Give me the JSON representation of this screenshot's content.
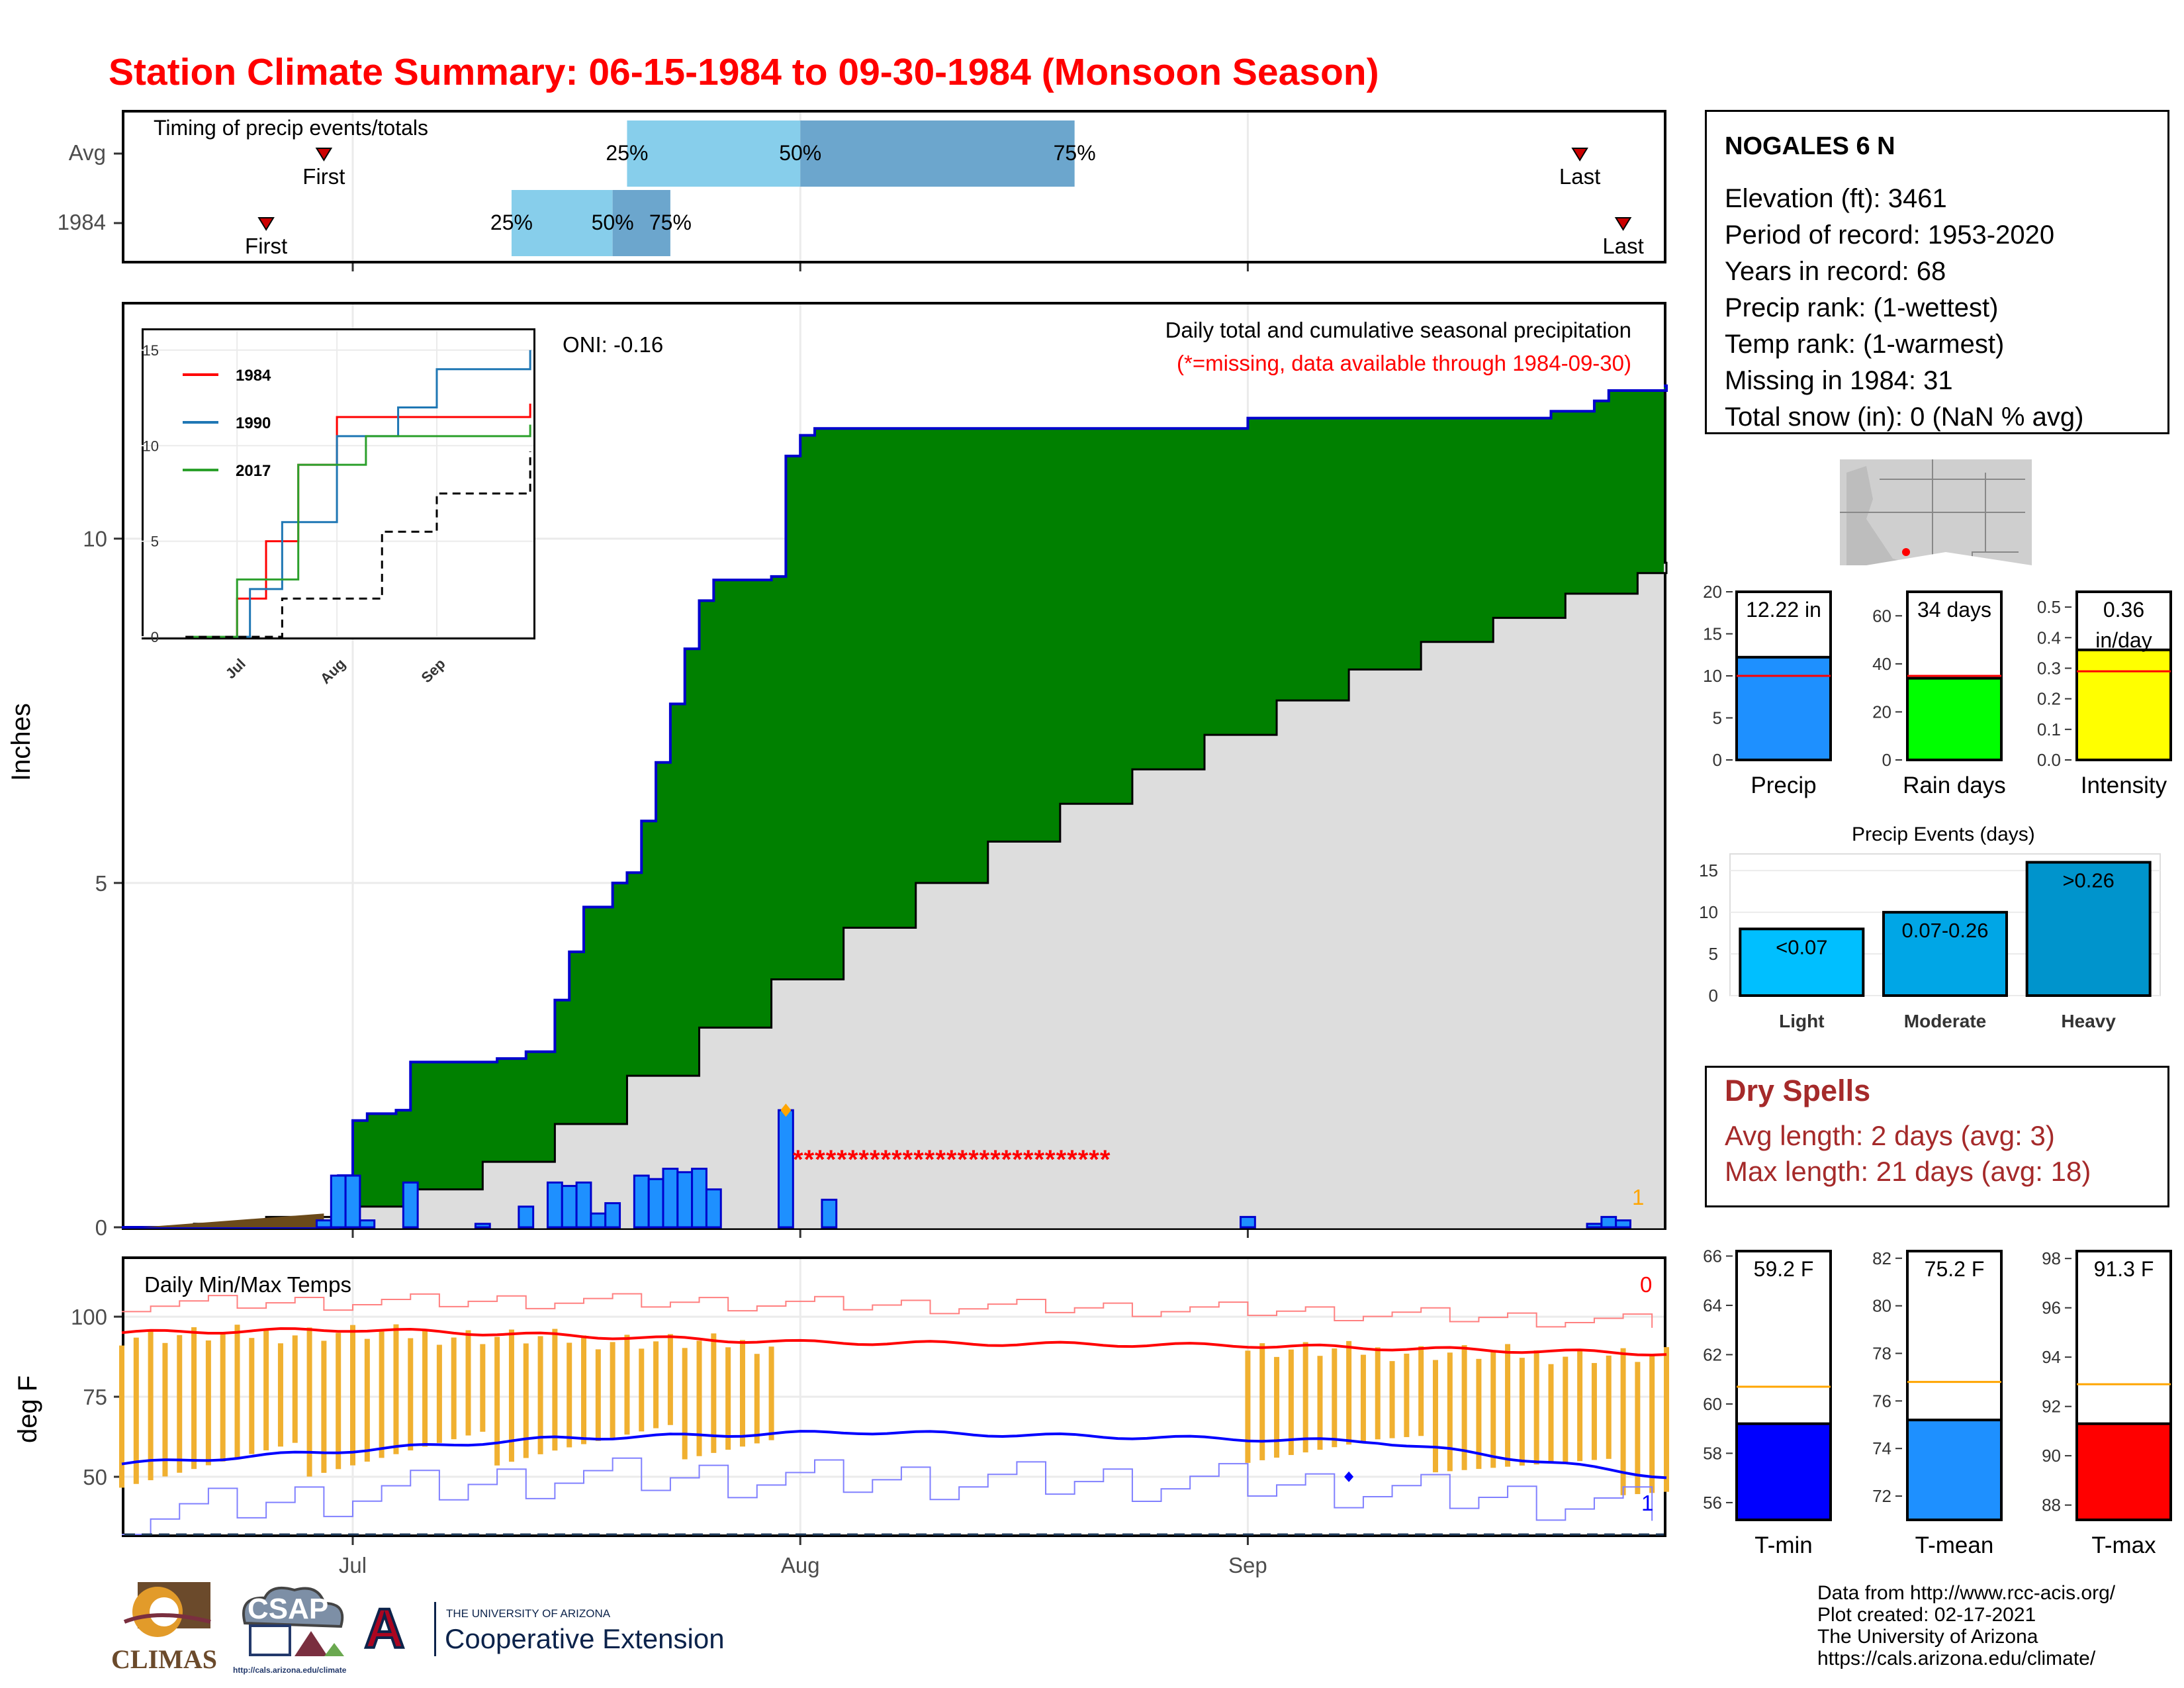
{
  "title": "Station Climate Summary: 06-15-1984 to 09-30-1984 (Monsoon Season)",
  "timing": {
    "label": "Timing of precip events/totals",
    "rows": [
      {
        "name": "Avg",
        "first": "First",
        "last": "Last",
        "q25": "25%",
        "q50": "50%",
        "q75": "75%",
        "first_day": "2024-06-29",
        "last_day": "2024-09-24",
        "q25_day": "2024-07-20",
        "q50_day": "2024-08-01",
        "q75_day": "2024-08-20"
      },
      {
        "name": "1984",
        "first": "First",
        "last": "Last",
        "q25": "25%",
        "q50": "50%",
        "q75": "75%",
        "first_day": "2024-06-25",
        "last_day": "2024-09-27",
        "q25_day": "2024-07-12",
        "q50_day": "2024-07-19",
        "q75_day": "2024-07-23"
      }
    ]
  },
  "main_chart": {
    "ylabel": "Inches",
    "oni": "ONI: -0.16",
    "caption": "Daily total and cumulative seasonal precipitation",
    "missing_note": "(*=missing, data available through 1984-09-30)",
    "missing_marks": "*****************************",
    "missing_count_label": "1",
    "x_ticks": [
      "Jul",
      "Aug",
      "Sep"
    ],
    "y_ticks": [
      "0",
      "5",
      "10"
    ]
  },
  "chart_data": [
    {
      "type": "area",
      "title": "Daily total and cumulative seasonal precipitation",
      "ylabel": "Inches",
      "ylim": [
        0,
        13.4
      ],
      "series": [
        {
          "name": "1984 cumulative",
          "color": "#008000",
          "points": [
            [
              "1984-06-15",
              0
            ],
            [
              "1984-06-29",
              0
            ],
            [
              "1984-06-30",
              0.75
            ],
            [
              "1984-07-01",
              1.55
            ],
            [
              "1984-07-02",
              1.65
            ],
            [
              "1984-07-04",
              1.7
            ],
            [
              "1984-07-05",
              2.4
            ],
            [
              "1984-07-11",
              2.45
            ],
            [
              "1984-07-13",
              2.55
            ],
            [
              "1984-07-15",
              3.3
            ],
            [
              "1984-07-16",
              4.0
            ],
            [
              "1984-07-17",
              4.65
            ],
            [
              "1984-07-19",
              5.0
            ],
            [
              "1984-07-20",
              5.15
            ],
            [
              "1984-07-21",
              5.9
            ],
            [
              "1984-07-22",
              6.75
            ],
            [
              "1984-07-23",
              7.6
            ],
            [
              "1984-07-24",
              8.4
            ],
            [
              "1984-07-25",
              9.1
            ],
            [
              "1984-07-26",
              9.4
            ],
            [
              "1984-07-30",
              9.45
            ],
            [
              "1984-07-31",
              11.2
            ],
            [
              "1984-08-01",
              11.5
            ],
            [
              "1984-08-02",
              11.6
            ],
            [
              "1984-09-01",
              11.75
            ],
            [
              "1984-09-21",
              11.75
            ],
            [
              "1984-09-22",
              11.85
            ],
            [
              "1984-09-25",
              12.0
            ],
            [
              "1984-09-26",
              12.15
            ],
            [
              "1984-09-30",
              12.22
            ]
          ]
        },
        {
          "name": "Avg cumulative",
          "color": "#dddddd",
          "points": [
            [
              "1984-06-15",
              0
            ],
            [
              "1984-06-20",
              0.05
            ],
            [
              "1984-06-25",
              0.15
            ],
            [
              "1984-06-30",
              0.3
            ],
            [
              "1984-07-05",
              0.55
            ],
            [
              "1984-07-10",
              0.95
            ],
            [
              "1984-07-15",
              1.5
            ],
            [
              "1984-07-20",
              2.2
            ],
            [
              "1984-07-25",
              2.9
            ],
            [
              "1984-07-30",
              3.6
            ],
            [
              "1984-08-04",
              4.35
            ],
            [
              "1984-08-09",
              5.0
            ],
            [
              "1984-08-14",
              5.6
            ],
            [
              "1984-08-19",
              6.15
            ],
            [
              "1984-08-24",
              6.65
            ],
            [
              "1984-08-29",
              7.15
            ],
            [
              "1984-09-03",
              7.65
            ],
            [
              "1984-09-08",
              8.1
            ],
            [
              "1984-09-13",
              8.5
            ],
            [
              "1984-09-18",
              8.85
            ],
            [
              "1984-09-23",
              9.2
            ],
            [
              "1984-09-28",
              9.5
            ],
            [
              "1984-09-30",
              9.65
            ]
          ]
        },
        {
          "name": "1984 daily",
          "color": "#1e90ff",
          "points": [
            [
              "1984-06-29",
              0.1
            ],
            [
              "1984-06-30",
              0.75
            ],
            [
              "1984-07-01",
              0.75
            ],
            [
              "1984-07-02",
              0.1
            ],
            [
              "1984-07-05",
              0.65
            ],
            [
              "1984-07-10",
              0.05
            ],
            [
              "1984-07-13",
              0.3
            ],
            [
              "1984-07-15",
              0.65
            ],
            [
              "1984-07-16",
              0.6
            ],
            [
              "1984-07-17",
              0.65
            ],
            [
              "1984-07-18",
              0.2
            ],
            [
              "1984-07-19",
              0.35
            ],
            [
              "1984-07-21",
              0.75
            ],
            [
              "1984-07-22",
              0.7
            ],
            [
              "1984-07-23",
              0.85
            ],
            [
              "1984-07-24",
              0.8
            ],
            [
              "1984-07-25",
              0.85
            ],
            [
              "1984-07-26",
              0.55
            ],
            [
              "1984-07-31",
              1.7
            ],
            [
              "1984-08-03",
              0.4
            ],
            [
              "1984-09-01",
              0.15
            ],
            [
              "1984-09-25",
              0.05
            ],
            [
              "1984-09-26",
              0.15
            ],
            [
              "1984-09-27",
              0.1
            ]
          ]
        }
      ]
    },
    {
      "type": "line",
      "title": "",
      "series": [
        {
          "name": "1984",
          "color": "#ff0000",
          "points": [
            [
              "1984-06-15",
              0
            ],
            [
              "1984-07-01",
              2
            ],
            [
              "1984-07-10",
              5
            ],
            [
              "1984-07-20",
              9
            ],
            [
              "1984-08-01",
              11.5
            ],
            [
              "1984-09-30",
              12.2
            ]
          ]
        },
        {
          "name": "1990",
          "color": "#1f77b4",
          "points": [
            [
              "1990-06-15",
              0
            ],
            [
              "1990-07-05",
              2.5
            ],
            [
              "1990-07-15",
              6
            ],
            [
              "1990-08-01",
              10.5
            ],
            [
              "1990-08-20",
              12
            ],
            [
              "1990-09-01",
              14
            ],
            [
              "1990-09-30",
              15
            ]
          ]
        },
        {
          "name": "2017",
          "color": "#2ca02c",
          "points": [
            [
              "2017-06-15",
              0
            ],
            [
              "2017-07-01",
              3
            ],
            [
              "2017-07-20",
              9
            ],
            [
              "2017-08-10",
              10.5
            ],
            [
              "2017-09-30",
              11.1
            ]
          ]
        },
        {
          "name": "Avg",
          "color": "#000000",
          "points": [
            [
              "2017-06-15",
              0
            ],
            [
              "2017-07-15",
              2
            ],
            [
              "2017-08-15",
              5.5
            ],
            [
              "2017-09-01",
              7.5
            ],
            [
              "2017-09-30",
              9.7
            ]
          ]
        }
      ],
      "y_ticks": [
        "0",
        "5",
        "10",
        "15"
      ],
      "x_ticks": [
        "Jul",
        "Aug",
        "Sep"
      ]
    },
    {
      "type": "bar",
      "categories": [
        "Precip"
      ],
      "values": [
        12.22
      ],
      "avg": 10.0,
      "ylim": [
        0,
        20
      ],
      "label": "12.22 in",
      "xlabel": "Precip",
      "color": "#1e90ff",
      "y_ticks": [
        "0",
        "5",
        "10",
        "15",
        "20"
      ]
    },
    {
      "type": "bar",
      "categories": [
        "Rain days"
      ],
      "values": [
        34
      ],
      "avg": 35,
      "ylim": [
        0,
        70
      ],
      "label": "34 days",
      "xlabel": "Rain days",
      "color": "#00ff00",
      "y_ticks": [
        "0",
        "20",
        "40",
        "60"
      ]
    },
    {
      "type": "bar",
      "categories": [
        "Intensity"
      ],
      "values": [
        0.36
      ],
      "avg": 0.29,
      "ylim": [
        0,
        0.55
      ],
      "label": "0.36",
      "label2": "in/day",
      "xlabel": "Intensity",
      "color": "#ffff00",
      "y_ticks": [
        "0.0",
        "0.1",
        "0.2",
        "0.3",
        "0.4",
        "0.5"
      ]
    },
    {
      "type": "bar",
      "title": "Precip Events (days)",
      "categories": [
        "Light",
        "Moderate",
        "Heavy"
      ],
      "values": [
        8,
        10,
        16
      ],
      "bar_labels": [
        "<0.07",
        "0.07-0.26",
        ">0.26"
      ],
      "colors": [
        "#00bfff",
        "#00a6e6",
        "#0094cc"
      ],
      "ylim": [
        0,
        17
      ],
      "y_ticks": [
        "0",
        "5",
        "10",
        "15"
      ]
    },
    {
      "type": "bar",
      "categories": [
        "T-min"
      ],
      "values": [
        59.2
      ],
      "avg": 60.7,
      "ylim": [
        55.3,
        66.2
      ],
      "label": "59.2 F",
      "xlabel": "T-min",
      "color": "#0000ff",
      "y_ticks": [
        "56",
        "58",
        "60",
        "62",
        "64",
        "66"
      ]
    },
    {
      "type": "bar",
      "categories": [
        "T-mean"
      ],
      "values": [
        75.2
      ],
      "avg": 76.8,
      "ylim": [
        71.0,
        82.3
      ],
      "label": "75.2 F",
      "xlabel": "T-mean",
      "color": "#1e90ff",
      "y_ticks": [
        "72",
        "74",
        "76",
        "78",
        "80",
        "82"
      ]
    },
    {
      "type": "bar",
      "categories": [
        "T-max"
      ],
      "values": [
        91.3
      ],
      "avg": 92.9,
      "ylim": [
        87.4,
        98.3
      ],
      "label": "91.3 F",
      "xlabel": "T-max",
      "color": "#ff0000",
      "y_ticks": [
        "88",
        "90",
        "92",
        "94",
        "96",
        "98"
      ]
    },
    {
      "type": "line",
      "title": "Daily Min/Max Temps",
      "ylabel": "deg F",
      "ylim": [
        32,
        118
      ],
      "y_ticks": [
        "50",
        "75",
        "100"
      ],
      "x_ticks": [
        "Jul",
        "Aug",
        "Sep"
      ],
      "series": [
        {
          "name": "Avg max",
          "color": "#ff0000",
          "points": [
            [
              "1984-06-15",
              95
            ],
            [
              "1984-07-01",
              96
            ],
            [
              "1984-08-01",
              92
            ],
            [
              "1984-09-01",
              91
            ],
            [
              "1984-09-30",
              88.5
            ]
          ]
        },
        {
          "name": "Avg min",
          "color": "#0000ff",
          "points": [
            [
              "1984-06-15",
              54
            ],
            [
              "1984-07-15",
              62
            ],
            [
              "1984-08-05",
              64
            ],
            [
              "1984-09-10",
              61
            ],
            [
              "1984-09-30",
              50
            ]
          ]
        },
        {
          "name": "Record max",
          "color": "#ff8080",
          "points": [
            [
              "1984-06-15",
              104
            ],
            [
              "1984-07-15",
              105
            ],
            [
              "1984-09-01",
              102
            ],
            [
              "1984-09-30",
              98
            ]
          ]
        },
        {
          "name": "Record min",
          "color": "#8080ff",
          "points": [
            [
              "1984-06-15",
              38
            ],
            [
              "1984-07-15",
              50
            ],
            [
              "1984-09-01",
              48
            ],
            [
              "1984-09-30",
              40
            ]
          ]
        }
      ],
      "freeze_line": 32,
      "max_label": "0",
      "min_label": "1"
    }
  ],
  "station": {
    "name": "NOGALES 6 N",
    "lines": [
      "Elevation (ft): 3461",
      "Period of record: 1953-2020",
      "Years in record: 68",
      "Precip rank:  (1-wettest)",
      "Temp rank:  (1-warmest)",
      "Missing in 1984: 31",
      "Total snow (in): 0 (NaN % avg)"
    ]
  },
  "dry_spells": {
    "title": "Dry Spells",
    "avg": "Avg length: 2 days (avg: 3)",
    "max": "Max length: 21 days (avg: 18)"
  },
  "footer": {
    "lines": [
      "Data from http://www.rcc-acis.org/",
      "Plot created: 02-17-2021",
      "The University of Arizona",
      "https://cals.arizona.edu/climate/"
    ]
  },
  "logos": {
    "climas": "CLIMAS",
    "csap": "CSAP",
    "csap_url": "http://cals.arizona.edu/climate",
    "ua_top": "THE UNIVERSITY OF ARIZONA",
    "ua_bottom": "Cooperative Extension",
    "ua_letter": "A"
  },
  "colors": {
    "title": "#ff0000",
    "green": "#008000",
    "grey": "#dddddd",
    "daily": "#1e90ff",
    "dry": "#a52a2a",
    "tbar": "#f0b030"
  }
}
